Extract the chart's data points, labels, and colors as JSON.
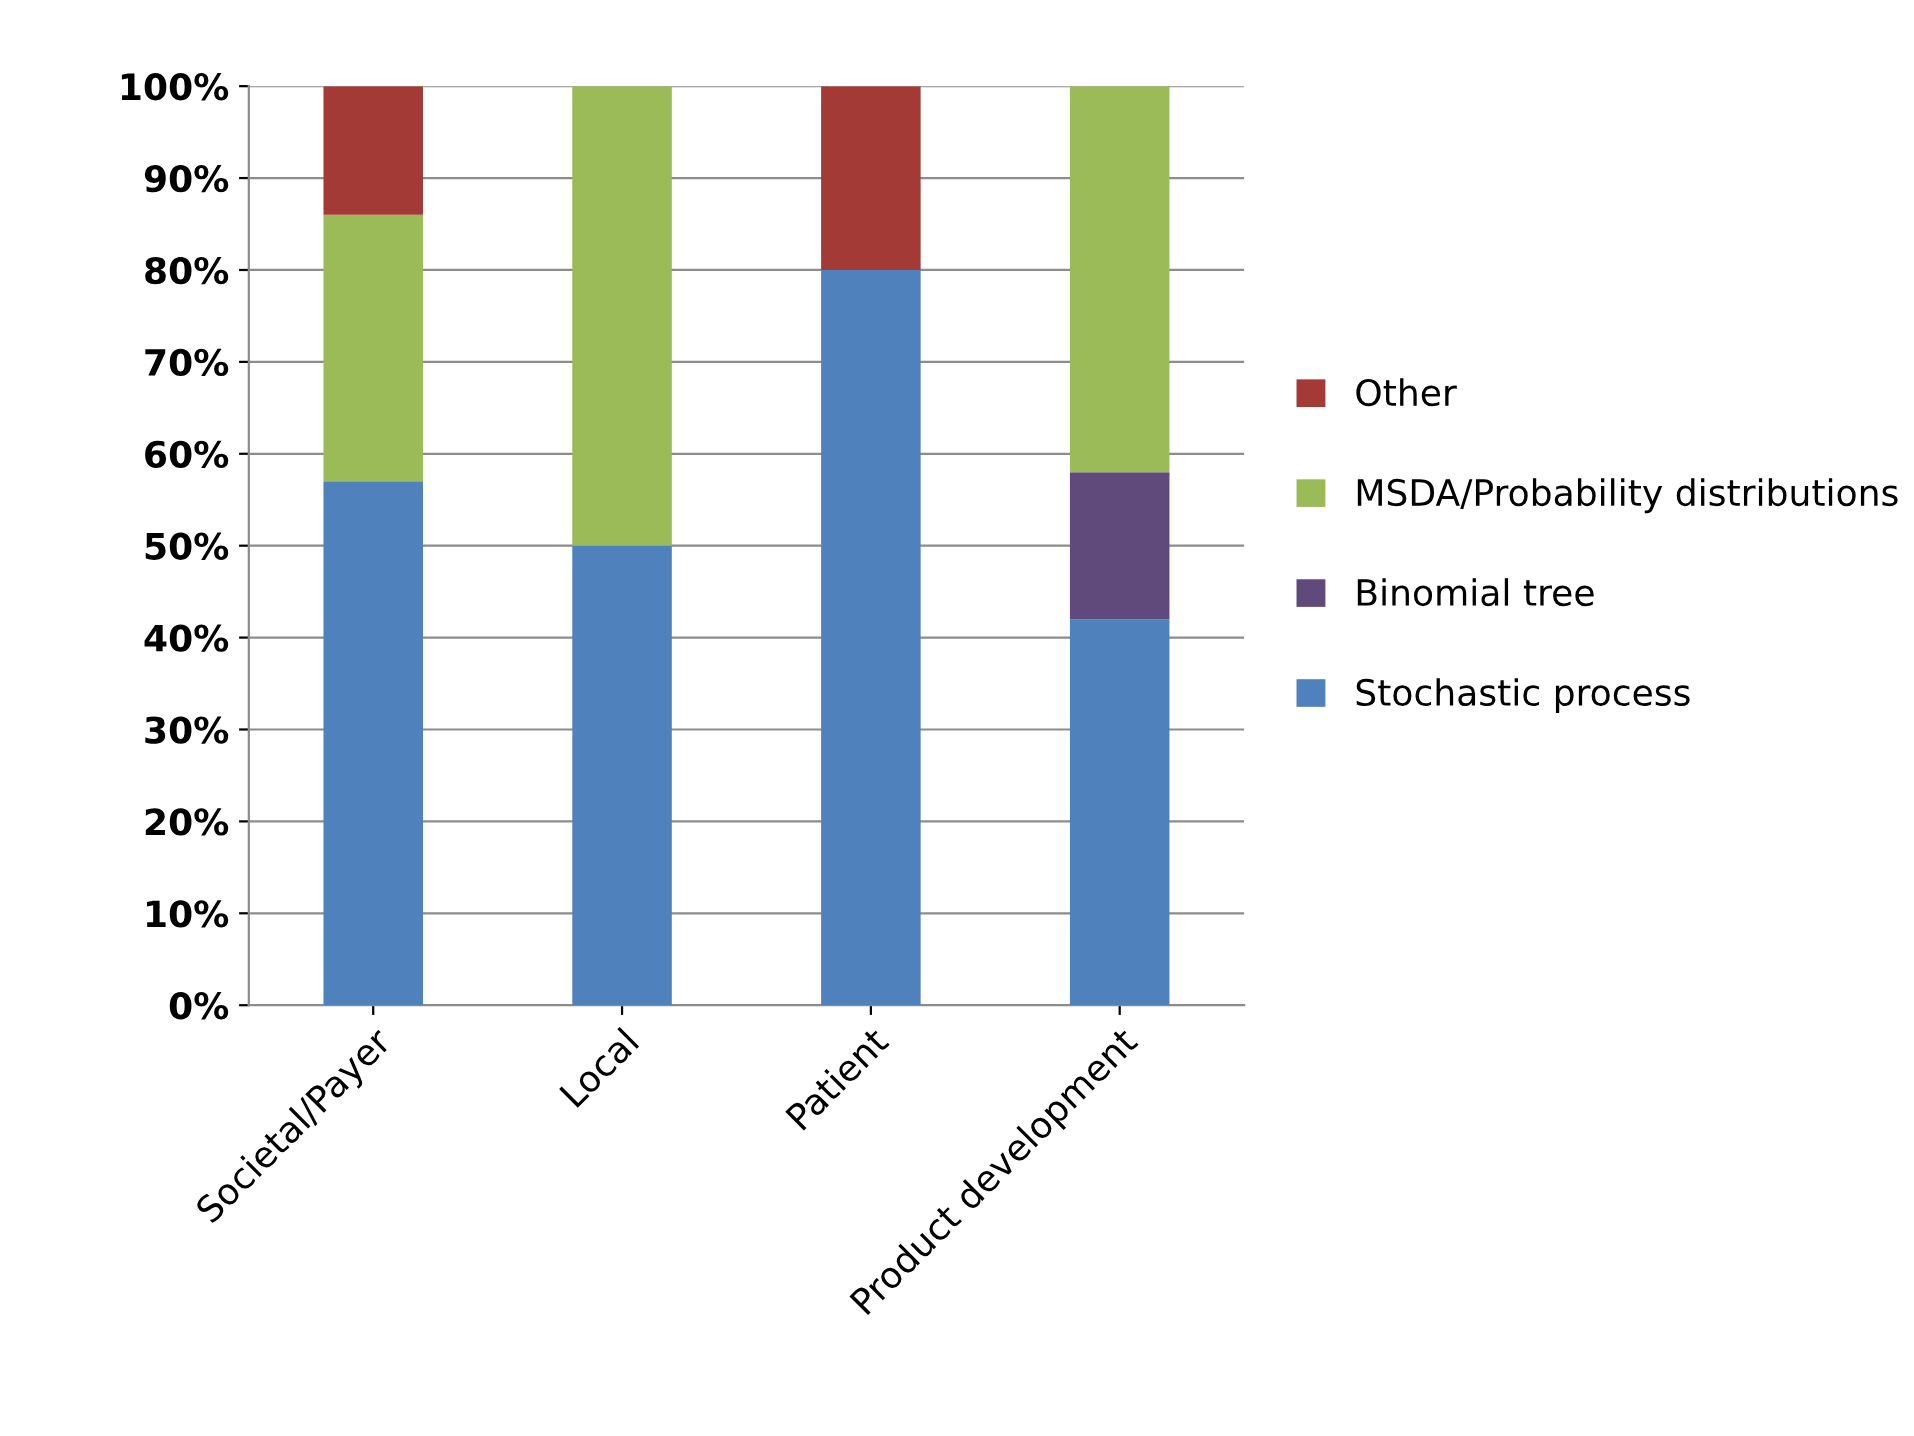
{
  "chart_data": {
    "type": "bar",
    "stacked": true,
    "categories": [
      "Societal/Payer",
      "Local",
      "Patient",
      "Product development"
    ],
    "series": [
      {
        "name": "Stochastic process",
        "color": "#4f81bd",
        "values": [
          57,
          50,
          80,
          42
        ]
      },
      {
        "name": "Binomial tree",
        "color": "#604a7b",
        "values": [
          0,
          0,
          0,
          16
        ]
      },
      {
        "name": "MSDA/Probability distributions",
        "color": "#9bbb59",
        "values": [
          29,
          50,
          0,
          42
        ]
      },
      {
        "name": "Other",
        "color": "#a33a36",
        "values": [
          14,
          0,
          20,
          0
        ]
      }
    ],
    "ylim": [
      0,
      100
    ],
    "yticks": [
      {
        "value": 0,
        "label": "0%"
      },
      {
        "value": 10,
        "label": "10%"
      },
      {
        "value": 20,
        "label": "20%"
      },
      {
        "value": 30,
        "label": "30%"
      },
      {
        "value": 40,
        "label": "40%"
      },
      {
        "value": 50,
        "label": "50%"
      },
      {
        "value": 60,
        "label": "60%"
      },
      {
        "value": 70,
        "label": "70%"
      },
      {
        "value": 80,
        "label": "80%"
      },
      {
        "value": 90,
        "label": "90%"
      },
      {
        "value": 100,
        "label": "100%"
      }
    ],
    "grid": "y",
    "legend": "right"
  }
}
